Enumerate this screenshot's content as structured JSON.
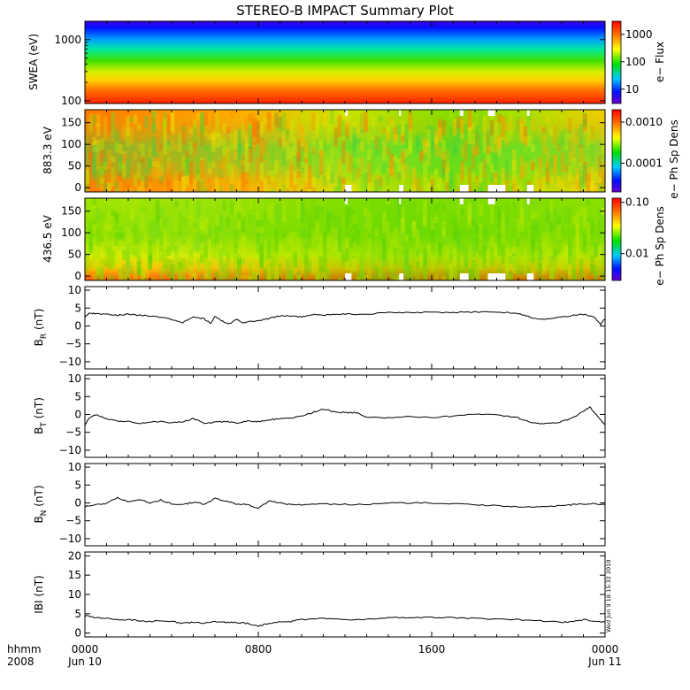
{
  "title": "STEREO-B IMPACT Summary Plot",
  "timestamp": "Wed Jun  9 18:15:32 2010",
  "time_axis": {
    "corner_top": "hhmm",
    "corner_bottom": "2008",
    "ticks": [
      {
        "t": 0,
        "top": "0000",
        "bottom": "Jun 10"
      },
      {
        "t": 8,
        "top": "0800",
        "bottom": ""
      },
      {
        "t": 16,
        "top": "1600",
        "bottom": ""
      },
      {
        "t": 24,
        "top": "0000",
        "bottom": "Jun 11"
      }
    ]
  },
  "chart_data": [
    {
      "type": "heatmap",
      "id": "swea",
      "ylabel": "SWEA (eV)",
      "yscale": "log",
      "ylim": [
        90,
        2000
      ],
      "yticks": [
        {
          "v": 100,
          "label": "100"
        },
        {
          "v": 1000,
          "label": "1000"
        }
      ],
      "colorbar": {
        "label": "e− Flux",
        "scale": "log",
        "range": [
          3,
          3000
        ],
        "ticks": [
          {
            "v": 10,
            "label": "10"
          },
          {
            "v": 100,
            "label": "100"
          },
          {
            "v": 1000,
            "label": "1000"
          }
        ]
      },
      "description_of_trend": [
        {
          "energy_eV": 100,
          "flux": 3000
        },
        {
          "energy_eV": 300,
          "flux": 800
        },
        {
          "energy_eV": 600,
          "flux": 150
        },
        {
          "energy_eV": 1000,
          "flux": 30
        },
        {
          "energy_eV": 2000,
          "flux": 3
        }
      ]
    },
    {
      "type": "heatmap",
      "id": "pad883",
      "ylabel": "883.3 eV",
      "ylim": [
        -10,
        180
      ],
      "yticks": [
        {
          "v": 0,
          "label": "0"
        },
        {
          "v": 50,
          "label": "50"
        },
        {
          "v": 100,
          "label": "100"
        },
        {
          "v": 150,
          "label": "150"
        }
      ],
      "colorbar": {
        "label": "e− Ph Sp Dens",
        "scale": "log",
        "range": [
          2e-05,
          0.002
        ],
        "ticks": [
          {
            "v": 0.0001,
            "label": "0.0001"
          },
          {
            "v": 0.001,
            "label": "0.0010"
          }
        ]
      },
      "data_gaps_hours": [
        [
          12.0,
          12.3
        ],
        [
          14.5,
          14.7
        ],
        [
          17.3,
          17.7
        ],
        [
          18.6,
          19.4
        ],
        [
          20.4,
          20.7
        ]
      ]
    },
    {
      "type": "heatmap",
      "id": "pad436",
      "ylabel": "436.5 eV",
      "ylim": [
        -10,
        180
      ],
      "yticks": [
        {
          "v": 0,
          "label": "0"
        },
        {
          "v": 50,
          "label": "50"
        },
        {
          "v": 100,
          "label": "100"
        },
        {
          "v": 150,
          "label": "150"
        }
      ],
      "colorbar": {
        "label": "e− Ph Sp Dens",
        "scale": "log",
        "range": [
          0.003,
          0.12
        ],
        "ticks": [
          {
            "v": 0.01,
            "label": "0.01"
          },
          {
            "v": 0.1,
            "label": "0.10"
          }
        ]
      },
      "data_gaps_hours": [
        [
          12.0,
          12.3
        ],
        [
          14.5,
          14.7
        ],
        [
          17.3,
          17.7
        ],
        [
          18.6,
          19.4
        ],
        [
          20.4,
          20.7
        ]
      ]
    },
    {
      "type": "line",
      "id": "br",
      "ylabel_main": "B",
      "ylabel_sub": "R",
      "ylabel_unit": " (nT)",
      "ylim": [
        -12,
        11
      ],
      "yticks": [
        {
          "v": -10,
          "label": "−10"
        },
        {
          "v": -5,
          "label": "−5"
        },
        {
          "v": 0,
          "label": "0"
        },
        {
          "v": 5,
          "label": "5"
        },
        {
          "v": 10,
          "label": "10"
        }
      ],
      "x": [
        0,
        0.2,
        0.5,
        1,
        1.5,
        2,
        2.5,
        3,
        3.5,
        4,
        4.5,
        5,
        5.5,
        5.8,
        6,
        6.3,
        6.6,
        7,
        7.3,
        7.6,
        8,
        8.3,
        8.6,
        9,
        9.5,
        10,
        10.5,
        11,
        11.5,
        12,
        13,
        14,
        15,
        16,
        17,
        18,
        19,
        20,
        20.5,
        21,
        21.5,
        22,
        22.5,
        23,
        23.5,
        23.8,
        24
      ],
      "values": [
        2.5,
        3.5,
        3.5,
        3.2,
        3.0,
        3.3,
        3.0,
        2.8,
        2.5,
        1.8,
        1.0,
        2.5,
        2.0,
        0.8,
        2.7,
        1.5,
        0.5,
        1.8,
        0.8,
        1.2,
        1.5,
        1.8,
        2.3,
        2.8,
        2.8,
        2.5,
        3.2,
        3.0,
        3.2,
        3.3,
        3.3,
        3.8,
        3.8,
        3.8,
        3.8,
        3.9,
        3.9,
        3.5,
        2.5,
        1.8,
        2.0,
        2.4,
        3.0,
        3.2,
        2.5,
        0.5,
        2.0
      ]
    },
    {
      "type": "line",
      "id": "bt",
      "ylabel_main": "B",
      "ylabel_sub": "T",
      "ylabel_unit": " (nT)",
      "ylim": [
        -12,
        11
      ],
      "yticks": [
        {
          "v": -10,
          "label": "−10"
        },
        {
          "v": -5,
          "label": "−5"
        },
        {
          "v": 0,
          "label": "0"
        },
        {
          "v": 5,
          "label": "5"
        },
        {
          "v": 10,
          "label": "10"
        }
      ],
      "x": [
        0,
        0.2,
        0.5,
        1,
        1.5,
        2,
        2.5,
        3,
        3.5,
        4,
        4.5,
        5,
        5.5,
        6,
        6.5,
        7,
        7.5,
        8,
        8.5,
        9,
        9.5,
        10,
        10.5,
        11,
        11.5,
        12,
        12.5,
        13,
        14,
        15,
        16,
        17,
        18,
        19,
        20,
        20.5,
        21,
        21.5,
        22,
        22.5,
        23,
        23.3,
        23.6,
        24
      ],
      "values": [
        -3,
        -1,
        0,
        -1.2,
        -1.8,
        -2,
        -2.5,
        -2.2,
        -2,
        -2.3,
        -2,
        -1.2,
        -2.5,
        -2.2,
        -2,
        -2.5,
        -1.8,
        -2,
        -1.5,
        -1.2,
        -1,
        -0.5,
        0.5,
        1.5,
        0.8,
        0.5,
        0.5,
        -0.8,
        -1,
        -0.6,
        -0.8,
        -0.5,
        0.2,
        0,
        -1,
        -2.2,
        -2.5,
        -2.5,
        -2,
        -1,
        1,
        2,
        0,
        -3
      ]
    },
    {
      "type": "line",
      "id": "bn",
      "ylabel_main": "B",
      "ylabel_sub": "N",
      "ylabel_unit": " (nT)",
      "ylim": [
        -12,
        11
      ],
      "yticks": [
        {
          "v": -10,
          "label": "−10"
        },
        {
          "v": -5,
          "label": "−5"
        },
        {
          "v": 0,
          "label": "0"
        },
        {
          "v": 5,
          "label": "5"
        },
        {
          "v": 10,
          "label": "10"
        }
      ],
      "x": [
        0,
        0.5,
        1,
        1.5,
        2,
        2.5,
        3,
        3.5,
        4,
        4.5,
        5,
        5.5,
        6,
        6.5,
        7,
        7.5,
        8,
        8.5,
        9,
        9.5,
        10,
        11,
        12,
        13,
        14,
        15,
        16,
        17,
        18,
        19,
        20,
        21,
        22,
        22.5,
        23,
        23.5,
        24
      ],
      "values": [
        -1,
        -0.5,
        -0.2,
        1.5,
        0.3,
        1.0,
        0,
        0.8,
        -0.3,
        -0.5,
        0.2,
        -0.3,
        1.2,
        0.5,
        -0.3,
        -0.5,
        -1.5,
        0.5,
        0,
        -0.5,
        -0.5,
        -0.3,
        -0.4,
        -0.5,
        0,
        0,
        0,
        -0.2,
        -0.5,
        -0.8,
        -1,
        -1.2,
        -0.8,
        -0.5,
        -0.3,
        -0.2,
        -0.5
      ]
    },
    {
      "type": "line",
      "id": "bmag",
      "ylabel": "IBI (nT)",
      "ylim": [
        -1,
        21
      ],
      "yticks": [
        {
          "v": 0,
          "label": "0"
        },
        {
          "v": 5,
          "label": "5"
        },
        {
          "v": 10,
          "label": "10"
        },
        {
          "v": 15,
          "label": "15"
        },
        {
          "v": 20,
          "label": "20"
        }
      ],
      "x": [
        0,
        0.5,
        1,
        1.5,
        2,
        2.5,
        3,
        3.5,
        4,
        4.5,
        5,
        5.5,
        6,
        6.5,
        7,
        7.5,
        8,
        8.5,
        9,
        9.5,
        10,
        11,
        12,
        13,
        14,
        15,
        16,
        17,
        18,
        19,
        20,
        21,
        22,
        22.5,
        23,
        23.5,
        24
      ],
      "values": [
        4.5,
        4.0,
        3.8,
        3.5,
        3.5,
        3.2,
        3.0,
        3.2,
        3.0,
        2.5,
        2.8,
        2.5,
        3.0,
        2.8,
        2.8,
        2.5,
        1.8,
        2.5,
        3.0,
        3.0,
        3.5,
        3.8,
        3.5,
        3.6,
        4.0,
        4.0,
        4.0,
        4.0,
        3.8,
        3.5,
        3.5,
        3.2,
        2.8,
        3.0,
        3.5,
        3.0,
        2.8
      ]
    }
  ]
}
